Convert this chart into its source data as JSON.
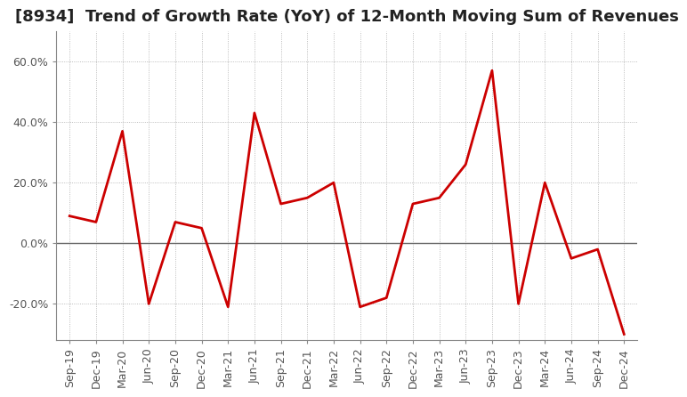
{
  "title": "[8934]  Trend of Growth Rate (YoY) of 12-Month Moving Sum of Revenues",
  "labels": [
    "Sep-19",
    "Dec-19",
    "Mar-20",
    "Jun-20",
    "Sep-20",
    "Dec-20",
    "Mar-21",
    "Jun-21",
    "Sep-21",
    "Dec-21",
    "Mar-22",
    "Jun-22",
    "Sep-22",
    "Dec-22",
    "Mar-23",
    "Jun-23",
    "Sep-23",
    "Dec-23",
    "Mar-24",
    "Jun-24",
    "Sep-24",
    "Dec-24"
  ],
  "values": [
    0.09,
    0.07,
    0.37,
    -0.2,
    0.07,
    0.05,
    -0.21,
    0.43,
    0.13,
    0.15,
    0.2,
    -0.21,
    -0.18,
    0.13,
    0.15,
    0.26,
    0.57,
    -0.2,
    0.2,
    -0.05,
    -0.02,
    -0.3
  ],
  "line_color": "#CC0000",
  "line_width": 2.0,
  "ylim": [
    -0.32,
    0.7
  ],
  "yticks": [
    -0.2,
    0.0,
    0.2,
    0.4,
    0.6
  ],
  "ytick_labels": [
    "-20.0%",
    "0.0%",
    "20.0%",
    "40.0%",
    "60.0%"
  ],
  "background_color": "#FFFFFF",
  "grid_color": "#AAAAAA",
  "title_fontsize": 13,
  "tick_fontsize": 9,
  "tick_color": "#555555",
  "zero_line_color": "#666666",
  "spine_color": "#888888"
}
